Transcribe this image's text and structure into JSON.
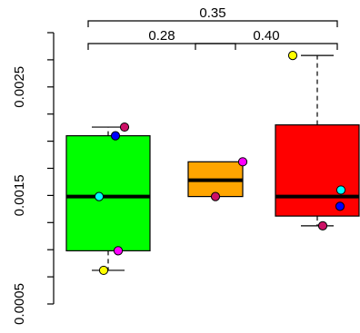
{
  "chart_data": {
    "type": "box",
    "title": "",
    "xlabel": "",
    "ylabel": "",
    "ylim": [
      0.0005,
      0.003
    ],
    "y_ticks": [
      "0.0005",
      "0.0015",
      "0.0025"
    ],
    "groups": [
      {
        "fill": "#00ff00",
        "q1": 0.00099,
        "median": 0.00149,
        "q3": 0.00205,
        "whisker_low": 0.00081,
        "whisker_high": 0.00213,
        "points": [
          {
            "value": 0.00213,
            "color": "#cc1166"
          },
          {
            "value": 0.00205,
            "color": "#0000ff"
          },
          {
            "value": 0.00149,
            "color": "#00ffff"
          },
          {
            "value": 0.00099,
            "color": "#ff00ff"
          },
          {
            "value": 0.00081,
            "color": "#ffff00"
          }
        ]
      },
      {
        "fill": "#ffa500",
        "q1": 0.00149,
        "median": 0.00164,
        "q3": 0.00181,
        "whisker_low": 0.00149,
        "whisker_high": 0.00181,
        "points": [
          {
            "value": 0.00181,
            "color": "#ff00ff"
          },
          {
            "value": 0.00149,
            "color": "#cc1166"
          }
        ]
      },
      {
        "fill": "#ff0000",
        "q1": 0.00131,
        "median": 0.00149,
        "q3": 0.00215,
        "whisker_low": 0.00122,
        "whisker_high": 0.00279,
        "points": [
          {
            "value": 0.00279,
            "color": "#ffff00"
          },
          {
            "value": 0.00155,
            "color": "#00ffff"
          },
          {
            "value": 0.0014,
            "color": "#0000ff"
          },
          {
            "value": 0.00122,
            "color": "#cc1166"
          }
        ]
      }
    ],
    "comparisons": [
      {
        "from": 0,
        "to": 2,
        "label": "0.35"
      },
      {
        "from": 0,
        "to": 1,
        "label": "0.28"
      },
      {
        "from": 1,
        "to": 2,
        "label": "0.40"
      }
    ]
  }
}
